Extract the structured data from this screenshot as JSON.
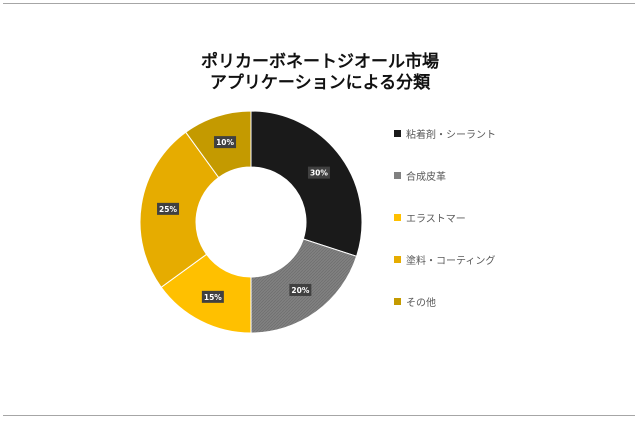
{
  "chart_data": {
    "type": "donut",
    "title_lines": [
      "ポリカーボネートジオール市場",
      "アプリケーションによる分類"
    ],
    "categories": [
      "粘着剤・シーラント",
      "合成皮革",
      "エラストマー",
      "塗料・コーティング",
      "その他"
    ],
    "values": [
      30,
      20,
      15,
      25,
      10
    ],
    "data_labels": [
      "30%",
      "20%",
      "15%",
      "25%",
      "10%"
    ],
    "colors": [
      "#1a1a1a",
      "#808080",
      "#ffc000",
      "#e6ac00",
      "#c49a00"
    ],
    "legend_position": "right"
  }
}
